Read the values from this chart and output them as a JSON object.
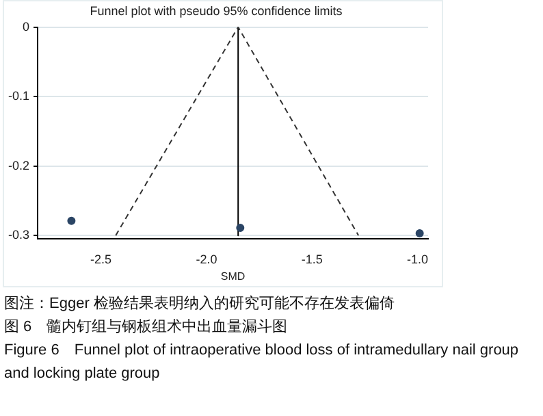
{
  "chart_data": {
    "type": "scatter",
    "title": "Funnel plot with pseudo 95% confidence limits",
    "xlabel": "SMD",
    "xlim": [
      -2.8,
      -0.95
    ],
    "xticks": [
      -2.5,
      {
        "value": -2,
        "label": "-2.0"
      },
      -1.5,
      {
        "value": -1,
        "label": "-1.0"
      }
    ],
    "ylim": [
      -0.305,
      0
    ],
    "yticks": [
      0,
      -0.1,
      -0.2,
      -0.3
    ],
    "grid": "y",
    "marker": "circle",
    "legend": false,
    "series": [
      {
        "type": "scatter",
        "color": "#2b4565",
        "x": [
          -2.64,
          -1.84,
          -0.99
        ],
        "values": [
          -0.279,
          -0.289,
          -0.297
        ]
      },
      {
        "type": "line",
        "color": "#333333",
        "line_style": "dashed",
        "marker": "none",
        "x": [
          -2.43,
          -1.85,
          -1.28
        ],
        "values": [
          -0.3,
          0,
          -0.3
        ]
      },
      {
        "type": "line",
        "color": "#000000",
        "line_style": "solid",
        "marker": "none",
        "x": [
          -1.85,
          -1.85
        ],
        "values": [
          0,
          -0.3
        ]
      }
    ],
    "annotations": [
      "图注：Egger 检验结果表明纳入的研究可能不存在发表偏倚",
      "图 6　髓内钉组与钢板组术中出血量漏斗图",
      "Figure 6　Funnel plot of intraoperative blood loss of intramedullary nail group and locking plate group"
    ]
  }
}
